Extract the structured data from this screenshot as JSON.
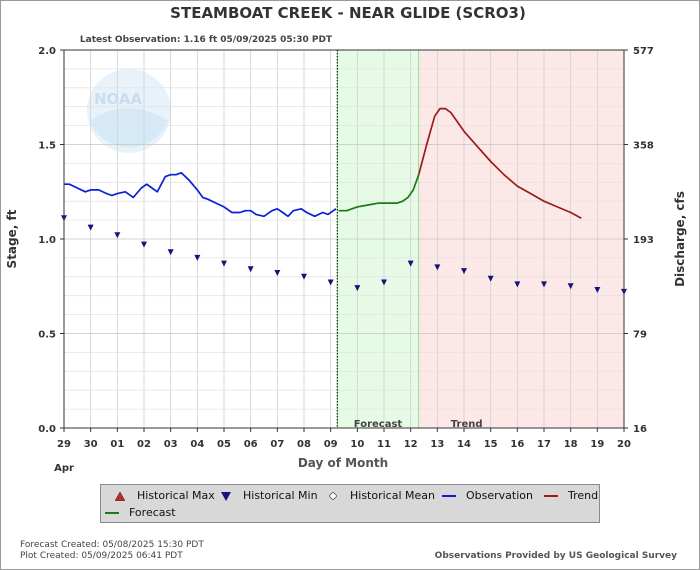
{
  "title": "STEAMBOAT CREEK - NEAR GLIDE  (SCRO3)",
  "latest_observation": "Latest Observation: 1.16 ft 05/09/2025 05:30 PDT",
  "watermark": "NOAA",
  "footer": {
    "forecast_created": "Forecast Created: 05/08/2025 15:30 PDT",
    "plot_created": "Plot Created: 05/09/2025 06:41 PDT",
    "provider": "Observations Provided by US Geological Survey"
  },
  "legend": {
    "historical_max": "Historical Max",
    "historical_min": "Historical Min",
    "historical_mean": "Historical Mean",
    "observation": "Observation",
    "trend": "Trend",
    "forecast": "Forecast"
  },
  "colors": {
    "observation": "#0b1fd6",
    "forecast": "#1a7a1a",
    "trend": "#9b1c1c",
    "historical_min": "#14147a",
    "forecast_band": "#e6fbe6",
    "trend_band": "#fde8e8",
    "historical_max": "#b03030"
  },
  "chart_data": {
    "type": "line",
    "xlabel": "Day of Month",
    "ylabel": "Stage, ft",
    "y2label": "Discharge, cfs",
    "x_month_label": "Apr",
    "x_ticks": [
      "29",
      "30",
      "01",
      "02",
      "03",
      "04",
      "05",
      "06",
      "07",
      "08",
      "09",
      "10",
      "11",
      "12",
      "13",
      "14",
      "15",
      "16",
      "17",
      "18",
      "19",
      "20"
    ],
    "xlim": [
      0,
      21
    ],
    "ylim": [
      0.0,
      2.0
    ],
    "y_ticks": [
      "0.0",
      "0.5",
      "1.0",
      "1.5",
      "2.0"
    ],
    "y2_ticks": [
      {
        "stage": 0.0,
        "label": "16"
      },
      {
        "stage": 0.5,
        "label": "79"
      },
      {
        "stage": 1.0,
        "label": "193"
      },
      {
        "stage": 1.5,
        "label": "358"
      },
      {
        "stage": 2.0,
        "label": "577"
      }
    ],
    "grid": true,
    "now_day": 10.25,
    "forecast_region": {
      "label": "Forecast",
      "start": 10.25,
      "end": 13.3
    },
    "trend_region": {
      "label": "Trend",
      "start": 13.3,
      "end": 21.0
    },
    "series": [
      {
        "name": "Observation",
        "x": [
          0.0,
          0.2,
          0.5,
          0.8,
          1.0,
          1.3,
          1.6,
          1.8,
          2.0,
          2.3,
          2.6,
          2.9,
          3.1,
          3.3,
          3.5,
          3.8,
          4.0,
          4.2,
          4.4,
          4.7,
          5.0,
          5.2,
          5.4,
          5.7,
          6.0,
          6.3,
          6.6,
          6.8,
          7.0,
          7.2,
          7.5,
          7.8,
          8.0,
          8.2,
          8.4,
          8.6,
          8.9,
          9.1,
          9.4,
          9.7,
          9.9,
          10.1,
          10.2
        ],
        "y": [
          1.29,
          1.29,
          1.27,
          1.25,
          1.26,
          1.26,
          1.24,
          1.23,
          1.24,
          1.25,
          1.22,
          1.27,
          1.29,
          1.27,
          1.25,
          1.33,
          1.34,
          1.34,
          1.35,
          1.31,
          1.26,
          1.22,
          1.21,
          1.19,
          1.17,
          1.14,
          1.14,
          1.15,
          1.15,
          1.13,
          1.12,
          1.15,
          1.16,
          1.14,
          1.12,
          1.15,
          1.16,
          1.14,
          1.12,
          1.14,
          1.13,
          1.15,
          1.16
        ]
      },
      {
        "name": "Forecast",
        "x": [
          10.3,
          10.6,
          11.0,
          11.4,
          11.8,
          12.2,
          12.5,
          12.7,
          12.9,
          13.1,
          13.3
        ],
        "y": [
          1.15,
          1.15,
          1.17,
          1.18,
          1.19,
          1.19,
          1.19,
          1.2,
          1.22,
          1.26,
          1.34
        ]
      },
      {
        "name": "Trend",
        "x": [
          13.3,
          13.6,
          13.9,
          14.1,
          14.3,
          14.5,
          14.8,
          15.0,
          15.5,
          16.0,
          16.5,
          17.0,
          17.5,
          18.0,
          18.5,
          19.0,
          19.4
        ],
        "y": [
          1.34,
          1.5,
          1.65,
          1.69,
          1.69,
          1.67,
          1.61,
          1.57,
          1.49,
          1.41,
          1.34,
          1.28,
          1.24,
          1.2,
          1.17,
          1.14,
          1.11
        ]
      },
      {
        "name": "Historical Min",
        "x": [
          0,
          1,
          2,
          3,
          4,
          5,
          6,
          7,
          8,
          9,
          10,
          11,
          12,
          13,
          14,
          15,
          16,
          17,
          18,
          19,
          20,
          21
        ],
        "y": [
          1.11,
          1.06,
          1.02,
          0.97,
          0.93,
          0.9,
          0.87,
          0.84,
          0.82,
          0.8,
          0.77,
          0.74,
          0.77,
          0.87,
          0.85,
          0.83,
          0.79,
          0.76,
          0.76,
          0.75,
          0.73,
          0.72
        ]
      }
    ]
  }
}
